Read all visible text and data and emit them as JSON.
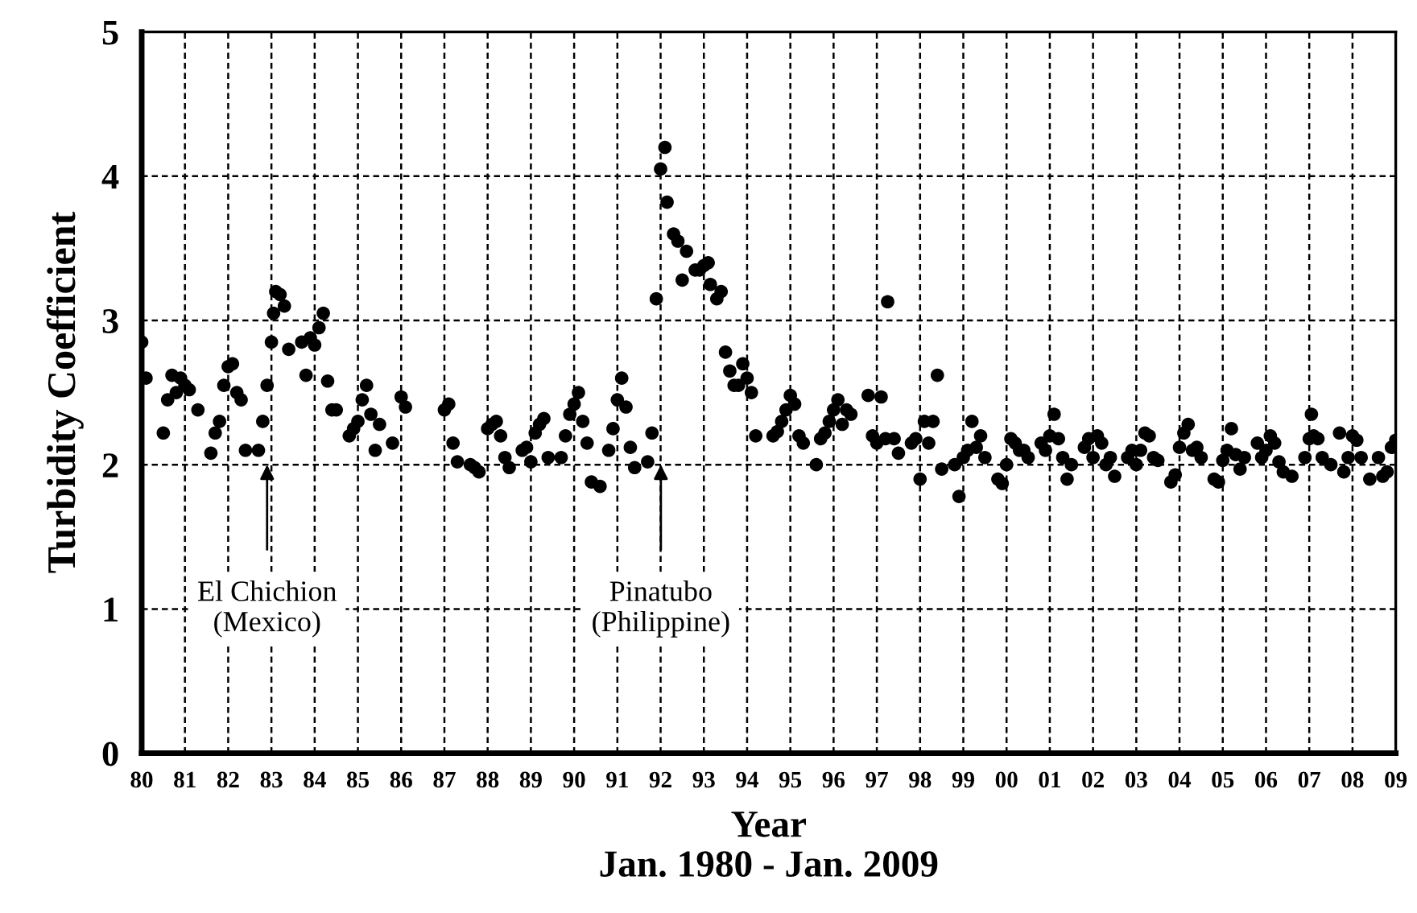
{
  "chart_data": {
    "type": "scatter",
    "xlabel": "Year\nJan. 1980 - Jan. 2009",
    "ylabel": "Turbidity Coefficient",
    "xlim": [
      1980,
      2009
    ],
    "ylim": [
      0,
      5
    ],
    "yticks": [
      0,
      1,
      2,
      3,
      4,
      5
    ],
    "xticks": [
      {
        "value": 1980,
        "label": "80"
      },
      {
        "value": 1981,
        "label": "81"
      },
      {
        "value": 1982,
        "label": "82"
      },
      {
        "value": 1983,
        "label": "83"
      },
      {
        "value": 1984,
        "label": "84"
      },
      {
        "value": 1985,
        "label": "85"
      },
      {
        "value": 1986,
        "label": "86"
      },
      {
        "value": 1987,
        "label": "87"
      },
      {
        "value": 1988,
        "label": "88"
      },
      {
        "value": 1989,
        "label": "89"
      },
      {
        "value": 1990,
        "label": "90"
      },
      {
        "value": 1991,
        "label": "91"
      },
      {
        "value": 1992,
        "label": "92"
      },
      {
        "value": 1993,
        "label": "93"
      },
      {
        "value": 1994,
        "label": "94"
      },
      {
        "value": 1995,
        "label": "95"
      },
      {
        "value": 1996,
        "label": "96"
      },
      {
        "value": 1997,
        "label": "97"
      },
      {
        "value": 1998,
        "label": "98"
      },
      {
        "value": 1999,
        "label": "99"
      },
      {
        "value": 2000,
        "label": "00"
      },
      {
        "value": 2001,
        "label": "01"
      },
      {
        "value": 2002,
        "label": "02"
      },
      {
        "value": 2003,
        "label": "03"
      },
      {
        "value": 2004,
        "label": "04"
      },
      {
        "value": 2005,
        "label": "05"
      },
      {
        "value": 2006,
        "label": "06"
      },
      {
        "value": 2007,
        "label": "07"
      },
      {
        "value": 2008,
        "label": "08"
      },
      {
        "value": 2009,
        "label": "09"
      }
    ],
    "grid": true,
    "marker": "circle",
    "annotations": [
      "El Chichion\n(Mexico)",
      "Pinatubo\n(Philippine)"
    ],
    "series": [
      {
        "color": "#000000",
        "x": [
          1980.0,
          1980.1,
          1980.5,
          1980.6,
          1980.7,
          1980.8,
          1980.9,
          1981.0,
          1981.1,
          1981.3,
          1981.6,
          1981.7,
          1981.8,
          1981.9,
          1982.0,
          1982.1,
          1982.2,
          1982.3,
          1982.4,
          1982.7,
          1982.8,
          1982.9,
          1983.0,
          1983.05,
          1983.1,
          1983.2,
          1983.3,
          1983.4,
          1983.7,
          1983.8,
          1983.9,
          1984.0,
          1984.1,
          1984.2,
          1984.3,
          1984.4,
          1984.5,
          1984.8,
          1984.9,
          1985.0,
          1985.1,
          1985.2,
          1985.3,
          1985.4,
          1985.5,
          1985.8,
          1986.0,
          1986.1,
          1987.0,
          1987.1,
          1987.2,
          1987.3,
          1987.6,
          1987.7,
          1987.8,
          1988.0,
          1988.1,
          1988.2,
          1988.3,
          1988.4,
          1988.5,
          1988.8,
          1988.9,
          1989.0,
          1989.1,
          1989.2,
          1989.3,
          1989.4,
          1989.7,
          1989.8,
          1989.9,
          1990.0,
          1990.1,
          1990.2,
          1990.3,
          1990.4,
          1990.6,
          1990.8,
          1990.9,
          1991.0,
          1991.1,
          1991.2,
          1991.3,
          1991.4,
          1991.7,
          1991.8,
          1991.9,
          1992.0,
          1992.1,
          1992.15,
          1992.3,
          1992.4,
          1992.5,
          1992.6,
          1992.8,
          1992.9,
          1993.0,
          1993.1,
          1993.15,
          1993.3,
          1993.4,
          1993.5,
          1993.6,
          1993.7,
          1993.8,
          1993.9,
          1994.0,
          1994.1,
          1994.2,
          1994.6,
          1994.7,
          1994.8,
          1994.9,
          1995.0,
          1995.1,
          1995.2,
          1995.3,
          1995.6,
          1995.7,
          1995.8,
          1995.9,
          1996.0,
          1996.1,
          1996.2,
          1996.3,
          1996.4,
          1996.8,
          1996.9,
          1997.0,
          1997.1,
          1997.2,
          1997.25,
          1997.4,
          1997.5,
          1997.8,
          1997.9,
          1998.0,
          1998.1,
          1998.2,
          1998.3,
          1998.4,
          1998.5,
          1998.8,
          1998.9,
          1999.0,
          1999.1,
          1999.2,
          1999.3,
          1999.4,
          1999.5,
          1999.8,
          1999.9,
          2000.0,
          2000.1,
          2000.2,
          2000.3,
          2000.4,
          2000.5,
          2000.8,
          2000.9,
          2001.0,
          2001.1,
          2001.2,
          2001.3,
          2001.4,
          2001.5,
          2001.8,
          2001.9,
          2002.0,
          2002.1,
          2002.2,
          2002.3,
          2002.4,
          2002.5,
          2002.8,
          2002.9,
          2003.0,
          2003.1,
          2003.2,
          2003.3,
          2003.4,
          2003.5,
          2003.8,
          2003.9,
          2004.0,
          2004.1,
          2004.2,
          2004.3,
          2004.4,
          2004.5,
          2004.8,
          2004.9,
          2005.0,
          2005.1,
          2005.2,
          2005.3,
          2005.4,
          2005.5,
          2005.8,
          2005.9,
          2006.0,
          2006.1,
          2006.2,
          2006.3,
          2006.4,
          2006.6,
          2006.9,
          2007.0,
          2007.05,
          2007.1,
          2007.2,
          2007.3,
          2007.5,
          2007.7,
          2007.8,
          2007.9,
          2008.0,
          2008.1,
          2008.2,
          2008.4,
          2008.6,
          2008.7,
          2008.8,
          2008.9,
          2009.0
        ],
        "values": [
          2.85,
          2.6,
          2.22,
          2.45,
          2.62,
          2.5,
          2.6,
          2.55,
          2.52,
          2.38,
          2.08,
          2.22,
          2.3,
          2.55,
          2.68,
          2.7,
          2.5,
          2.45,
          2.1,
          2.1,
          2.3,
          2.55,
          2.85,
          3.05,
          3.2,
          3.18,
          3.1,
          2.8,
          2.85,
          2.62,
          2.88,
          2.83,
          2.95,
          3.05,
          2.58,
          2.38,
          2.38,
          2.2,
          2.25,
          2.3,
          2.45,
          2.55,
          2.35,
          2.1,
          2.28,
          2.15,
          2.47,
          2.4,
          2.38,
          2.42,
          2.15,
          2.02,
          2.0,
          1.98,
          1.95,
          2.25,
          2.28,
          2.3,
          2.2,
          2.05,
          1.98,
          2.1,
          2.12,
          2.02,
          2.22,
          2.28,
          2.32,
          2.05,
          2.05,
          2.2,
          2.35,
          2.42,
          2.5,
          2.3,
          2.15,
          1.88,
          1.85,
          2.1,
          2.25,
          2.45,
          2.6,
          2.4,
          2.12,
          1.98,
          2.02,
          2.22,
          3.15,
          4.05,
          4.2,
          3.82,
          3.6,
          3.55,
          3.28,
          3.48,
          3.35,
          3.35,
          3.38,
          3.4,
          3.25,
          3.15,
          3.2,
          2.78,
          2.65,
          2.55,
          2.55,
          2.7,
          2.6,
          2.5,
          2.2,
          2.2,
          2.23,
          2.3,
          2.38,
          2.48,
          2.42,
          2.2,
          2.15,
          2.0,
          2.18,
          2.22,
          2.3,
          2.38,
          2.45,
          2.28,
          2.38,
          2.35,
          2.48,
          2.2,
          2.15,
          2.47,
          2.18,
          3.13,
          2.18,
          2.08,
          2.15,
          2.18,
          1.9,
          2.3,
          2.15,
          2.3,
          2.62,
          1.97,
          2.0,
          1.78,
          2.05,
          2.1,
          2.3,
          2.12,
          2.2,
          2.05,
          1.9,
          1.87,
          2.0,
          2.18,
          2.15,
          2.1,
          2.1,
          2.05,
          2.15,
          2.1,
          2.2,
          2.35,
          2.18,
          2.05,
          1.9,
          2.0,
          2.12,
          2.18,
          2.05,
          2.2,
          2.15,
          2.0,
          2.05,
          1.92,
          2.05,
          2.1,
          2.0,
          2.1,
          2.22,
          2.2,
          2.05,
          2.03,
          1.88,
          1.93,
          2.12,
          2.22,
          2.28,
          2.1,
          2.12,
          2.05,
          1.9,
          1.88,
          2.03,
          2.1,
          2.25,
          2.07,
          1.97,
          2.05,
          2.15,
          2.05,
          2.1,
          2.2,
          2.15,
          2.02,
          1.95,
          1.92,
          2.05,
          2.18,
          2.35,
          2.2,
          2.18,
          2.05,
          2.0,
          2.22,
          1.95,
          2.05,
          2.2,
          2.17,
          2.05,
          1.9,
          2.05,
          1.92,
          1.95,
          2.12,
          2.17
        ]
      }
    ]
  }
}
